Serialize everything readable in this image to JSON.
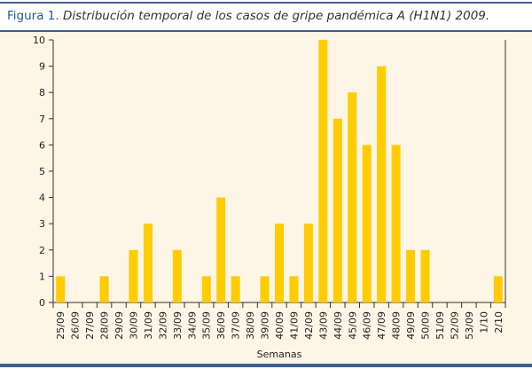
{
  "figure": {
    "label": "Figura 1.",
    "caption": "Distribución temporal de los casos de gripe pandémica A (H1N1) 2009."
  },
  "chart_data": {
    "type": "bar",
    "title": "",
    "xlabel": "Semanas",
    "ylabel": "",
    "ylim": [
      0,
      10
    ],
    "yticks": [
      0,
      1,
      2,
      3,
      4,
      5,
      6,
      7,
      8,
      9,
      10
    ],
    "grid": false,
    "bar_color": "#ffcc00",
    "categories": [
      "25/09",
      "26/09",
      "27/09",
      "28/09",
      "29/09",
      "30/09",
      "31/09",
      "32/09",
      "33/09",
      "34/09",
      "35/09",
      "36/09",
      "37/09",
      "38/09",
      "39/09",
      "40/09",
      "41/09",
      "42/09",
      "43/09",
      "44/09",
      "45/09",
      "46/09",
      "47/09",
      "48/09",
      "49/09",
      "50/09",
      "51/09",
      "52/09",
      "53/09",
      "1/10",
      "2/10"
    ],
    "values": [
      1,
      0,
      0,
      1,
      0,
      2,
      3,
      0,
      2,
      0,
      1,
      4,
      1,
      0,
      1,
      3,
      1,
      3,
      10,
      7,
      8,
      6,
      9,
      6,
      2,
      2,
      0,
      0,
      0,
      0,
      1
    ]
  }
}
